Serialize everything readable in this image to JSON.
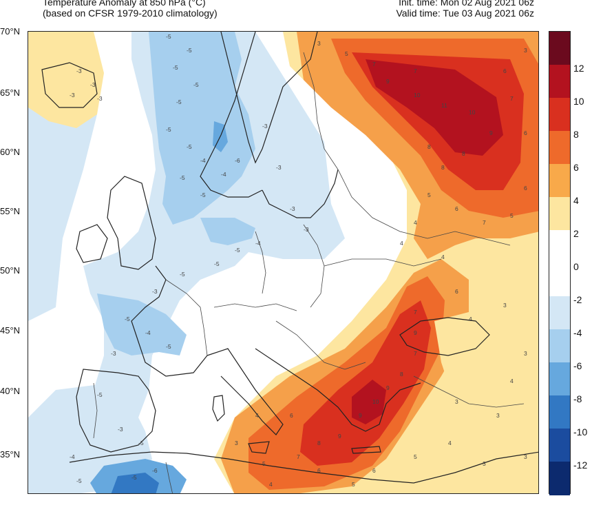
{
  "header": {
    "title_line1": "Temperature Anomaly at 850 hPa (°C)",
    "title_line2": "(based on CFSR 1979-2010 climatology)",
    "init_time": "Init. time: Mon 02 Aug 2021 06z",
    "valid_time": "Valid time: Tue 03 Aug 2021 06z"
  },
  "lat_labels": [
    "70°N",
    "65°N",
    "60°N",
    "55°N",
    "50°N",
    "45°N",
    "40°N",
    "35°N"
  ],
  "colorbar": {
    "ticks": [
      "12",
      "10",
      "8",
      "6",
      "4",
      "2",
      "0",
      "-2",
      "-4",
      "-6",
      "-8",
      "-10",
      "-12"
    ],
    "colors": [
      "#6b0a1e",
      "#b3121f",
      "#d9301f",
      "#ee6a2b",
      "#f8a94a",
      "#fde6a0",
      "#ffffff",
      "#ffffff",
      "#d4e7f5",
      "#a6cfee",
      "#66a8de",
      "#3278c3",
      "#1b4c9f",
      "#0c2a6e"
    ]
  },
  "map_palette": {
    "warm_faint": "#fde6a0",
    "warm_light": "#f8c46a",
    "warm_mid": "#f5a04a",
    "warm_orange": "#ee6a2b",
    "warm_red": "#d9301f",
    "warm_dark": "#b3121f",
    "cold_faint": "#d4e7f5",
    "cold_light": "#a6cfee",
    "cold_mid": "#66a8de",
    "cold_strong": "#3278c3",
    "coast": "#222222",
    "border": "#444444"
  },
  "contour_value_labels": [
    "3",
    "4",
    "5",
    "6",
    "7",
    "8",
    "9",
    "10",
    "11",
    "-3",
    "-4",
    "-5",
    "-6"
  ]
}
